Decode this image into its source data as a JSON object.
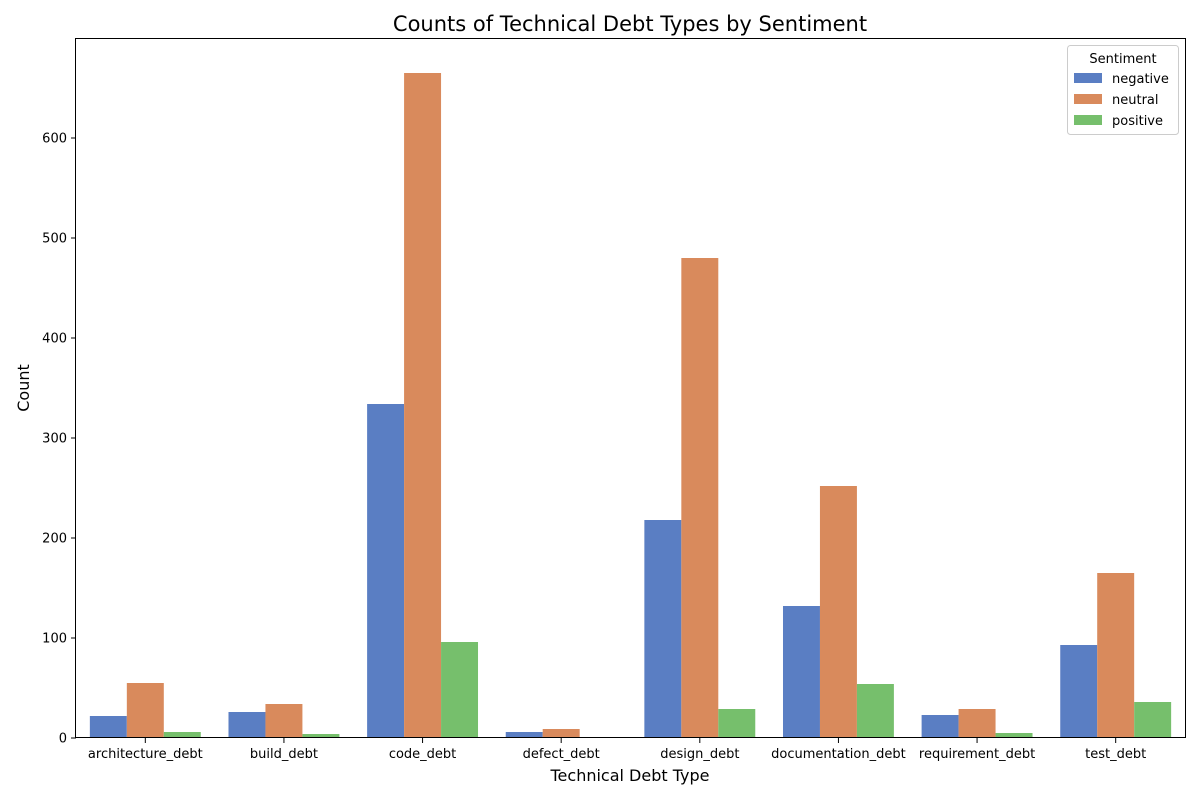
{
  "chart_data": {
    "type": "bar",
    "title": "Counts of Technical Debt Types by Sentiment",
    "xlabel": "Technical Debt Type",
    "ylabel": "Count",
    "categories": [
      "architecture_debt",
      "build_debt",
      "code_debt",
      "defect_debt",
      "design_debt",
      "documentation_debt",
      "requirement_debt",
      "test_debt"
    ],
    "series": [
      {
        "name": "negative",
        "color": "#5a7ec3",
        "values": [
          22,
          26,
          334,
          6,
          218,
          132,
          23,
          93
        ]
      },
      {
        "name": "neutral",
        "color": "#d98a5c",
        "values": [
          55,
          34,
          665,
          9,
          480,
          252,
          29,
          165
        ]
      },
      {
        "name": "positive",
        "color": "#76bf6c",
        "values": [
          6,
          4,
          96,
          0,
          29,
          54,
          5,
          36
        ]
      }
    ],
    "ylim": [
      0,
      700
    ],
    "yticks": [
      0,
      100,
      200,
      300,
      400,
      500,
      600
    ],
    "grid": false,
    "legend": {
      "title": "Sentiment",
      "placement": "top-right"
    }
  }
}
